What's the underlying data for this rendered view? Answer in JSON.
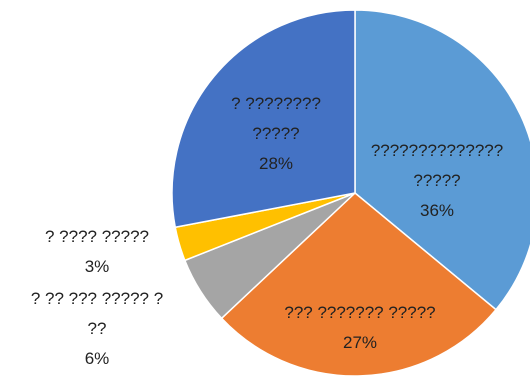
{
  "chart_data": {
    "type": "pie",
    "title": "",
    "legend": "none",
    "slices": [
      {
        "label_lines": [
          "??????????????",
          "?????"
        ],
        "percent_label": "36%",
        "value": 36,
        "color": "#5B9BD5"
      },
      {
        "label_lines": [
          "??? ??????? ?????"
        ],
        "percent_label": "27%",
        "value": 27,
        "color": "#ED7D31"
      },
      {
        "label_lines": [
          "? ?? ??? ????? ?",
          "??"
        ],
        "percent_label": "6%",
        "value": 6,
        "color": "#A5A5A5"
      },
      {
        "label_lines": [
          "?  ???? ?????"
        ],
        "percent_label": "3%",
        "value": 3,
        "color": "#FFC000"
      },
      {
        "label_lines": [
          "? ????????",
          "?????"
        ],
        "percent_label": "28%",
        "value": 28,
        "color": "#4472C4"
      }
    ]
  }
}
